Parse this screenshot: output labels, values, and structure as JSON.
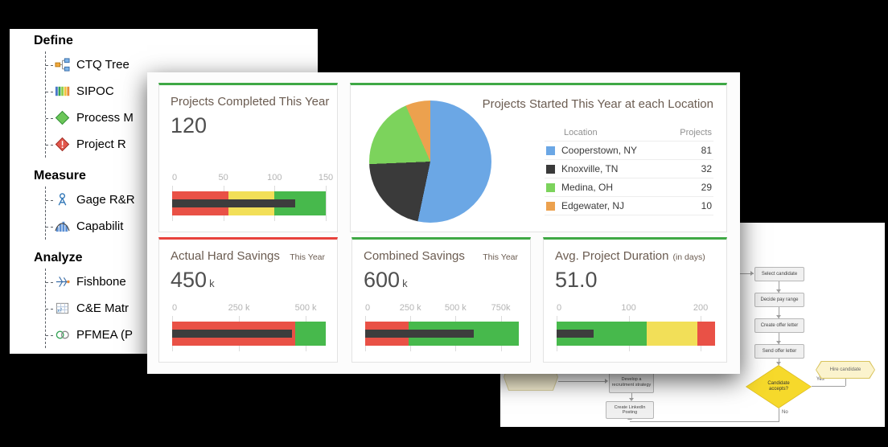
{
  "colors": {
    "desktop_bg": "#000000",
    "panel_bg": "#ffffff",
    "accent_green": "#3fa845",
    "accent_red": "#e8423c",
    "card_title": "#6b5c51",
    "card_value": "#4f4f4f",
    "axis_label": "#b4b4b4",
    "bullet_red": "#e95146",
    "bullet_yellow": "#f2df58",
    "bullet_green": "#47b94c",
    "bullet_bar": "#3d3d3d"
  },
  "toolbox": {
    "sections": [
      {
        "title": "Define",
        "items": [
          {
            "label": "CTQ Tree",
            "icon": "ctq-tree-icon"
          },
          {
            "label": "SIPOC",
            "icon": "sipoc-icon"
          },
          {
            "label": "Process M",
            "icon": "process-map-icon"
          },
          {
            "label": "Project R",
            "icon": "project-risk-icon"
          }
        ]
      },
      {
        "title": "Measure",
        "items": [
          {
            "label": "Gage R&R",
            "icon": "gage-rr-icon"
          },
          {
            "label": "Capabilit",
            "icon": "capability-icon"
          }
        ]
      },
      {
        "title": "Analyze",
        "items": [
          {
            "label": "Fishbone",
            "icon": "fishbone-icon"
          },
          {
            "label": "C&E Matr",
            "icon": "ce-matrix-icon"
          },
          {
            "label": "PFMEA (P",
            "icon": "pfmea-icon"
          }
        ]
      }
    ]
  },
  "dashboard": {
    "cards": [
      {
        "title": "Projects Completed This Year",
        "subtitle": "",
        "value": "120",
        "value_suffix": "",
        "accent": "#3fa845",
        "chart_data": {
          "type": "bullet",
          "title": "Projects Completed This Year",
          "value": 120,
          "axis_max": 150,
          "ticks": [
            {
              "label": "0",
              "value": 0
            },
            {
              "label": "50",
              "value": 50
            },
            {
              "label": "100",
              "value": 100
            },
            {
              "label": "150",
              "value": 150
            }
          ],
          "zones": [
            {
              "from": 0,
              "to": 55,
              "color": "#e95146"
            },
            {
              "from": 55,
              "to": 100,
              "color": "#f2df58"
            },
            {
              "from": 100,
              "to": 150,
              "color": "#47b94c"
            }
          ],
          "bar_color": "#3d3d3d"
        }
      },
      {
        "title": "Projects Started This Year at each Location",
        "accent": "#3fa845",
        "chart_data": {
          "type": "pie",
          "title": "Projects Started This Year at each Location",
          "legend_headers": {
            "location": "Location",
            "projects": "Projects"
          },
          "slices": [
            {
              "name": "Cooperstown, NY",
              "value": 81,
              "color": "#6ba7e5"
            },
            {
              "name": "Knoxville, TN",
              "value": 32,
              "color": "#3a3a3a"
            },
            {
              "name": "Medina, OH",
              "value": 29,
              "color": "#7cd35c"
            },
            {
              "name": "Edgewater, NJ",
              "value": 10,
              "color": "#eca14e"
            }
          ]
        }
      },
      {
        "title": "Actual Hard Savings",
        "subtitle": "This Year",
        "value": "450",
        "value_suffix": "k",
        "accent": "#e8423c",
        "chart_data": {
          "type": "bullet",
          "title": "Actual Hard Savings This Year",
          "value": 450,
          "unit": "k",
          "axis_max": 575,
          "ticks": [
            {
              "label": "0",
              "value": 0
            },
            {
              "label": "250 k",
              "value": 250
            },
            {
              "label": "500 k",
              "value": 500
            }
          ],
          "zones": [
            {
              "from": 0,
              "to": 460,
              "color": "#e95146"
            },
            {
              "from": 460,
              "to": 575,
              "color": "#47b94c"
            }
          ],
          "bar_color": "#3d3d3d"
        }
      },
      {
        "title": "Combined Savings",
        "subtitle": "This Year",
        "value": "600",
        "value_suffix": "k",
        "accent": "#3fa845",
        "chart_data": {
          "type": "bullet",
          "title": "Combined Savings This Year",
          "value": 600,
          "unit": "k",
          "axis_max": 850,
          "ticks": [
            {
              "label": "0",
              "value": 0
            },
            {
              "label": "250 k",
              "value": 250
            },
            {
              "label": "500 k",
              "value": 500
            },
            {
              "label": "750k",
              "value": 750
            }
          ],
          "zones": [
            {
              "from": 0,
              "to": 240,
              "color": "#e95146"
            },
            {
              "from": 240,
              "to": 850,
              "color": "#47b94c"
            }
          ],
          "bar_color": "#3d3d3d"
        }
      },
      {
        "title": "Avg. Project Duration",
        "subtitle": "(in days)",
        "value": "51.0",
        "value_suffix": "",
        "accent": "#3fa845",
        "chart_data": {
          "type": "bullet",
          "title": "Avg. Project Duration (in days)",
          "value": 51,
          "axis_max": 220,
          "ticks": [
            {
              "label": "0",
              "value": 0
            },
            {
              "label": "100",
              "value": 100
            },
            {
              "label": "200",
              "value": 200
            }
          ],
          "zones": [
            {
              "from": 0,
              "to": 125,
              "color": "#47b94c"
            },
            {
              "from": 125,
              "to": 195,
              "color": "#f2df58"
            },
            {
              "from": 195,
              "to": 220,
              "color": "#e95146"
            }
          ],
          "bar_color": "#3d3d3d"
        }
      }
    ]
  },
  "flowchart": {
    "steps": [
      "Select candidate",
      "Decide pay range",
      "Create offer letter",
      "Send offer letter"
    ],
    "decision": "Candidate accepts?",
    "outcome": "Hire candidate",
    "side_steps": [
      "Develop a recruitment strategy",
      "Create LinkedIn Posting"
    ],
    "yes_label": "Yes",
    "no_label": "No"
  }
}
